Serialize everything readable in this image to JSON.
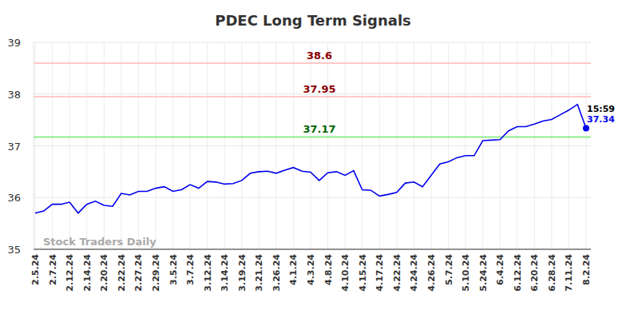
{
  "chart_data": {
    "type": "line",
    "title": "PDEC Long Term Signals",
    "categories": [
      "2.5.24",
      null,
      "2.7.24",
      null,
      "2.12.24",
      null,
      "2.14.24",
      null,
      "2.20.24",
      null,
      "2.22.24",
      null,
      "2.27.24",
      null,
      "2.29.24",
      null,
      "3.5.24",
      null,
      "3.7.24",
      null,
      "3.12.24",
      null,
      "3.14.24",
      null,
      "3.19.24",
      null,
      "3.21.24",
      null,
      "3.26.24",
      null,
      "4.1.24",
      null,
      "4.3.24",
      null,
      "4.8.24",
      null,
      "4.10.24",
      null,
      "4.15.24",
      null,
      "4.17.24",
      null,
      "4.22.24",
      null,
      "4.24.24",
      null,
      "4.26.24",
      null,
      "5.7.24",
      null,
      "5.10.24",
      null,
      "5.24.24",
      null,
      "6.4.24",
      null,
      "6.12.24",
      null,
      "6.20.24",
      null,
      "6.28.24",
      null,
      "7.11.24",
      null,
      "8.2.24"
    ],
    "values": [
      35.7,
      35.74,
      35.87,
      35.87,
      35.91,
      35.7,
      35.87,
      35.93,
      35.85,
      35.83,
      36.08,
      36.05,
      36.12,
      36.12,
      36.18,
      36.21,
      36.12,
      36.15,
      36.25,
      36.18,
      36.31,
      36.3,
      36.26,
      36.27,
      36.33,
      36.47,
      36.5,
      36.51,
      36.47,
      36.53,
      36.58,
      36.51,
      36.49,
      36.33,
      36.48,
      36.5,
      36.43,
      36.52,
      36.15,
      36.14,
      36.03,
      36.06,
      36.1,
      36.28,
      36.3,
      36.21,
      36.43,
      36.65,
      36.69,
      36.77,
      36.81,
      36.81,
      37.1,
      37.11,
      37.12,
      37.29,
      37.37,
      37.37,
      37.42,
      37.48,
      37.51,
      37.6,
      37.69,
      37.8,
      37.34
    ],
    "color": "#0000ee",
    "ylim": [
      35,
      39
    ],
    "yticks": [
      35,
      36,
      37,
      38,
      39
    ],
    "grid": true,
    "reference_lines": [
      {
        "value": 38.6,
        "color": "#ffc8c8",
        "label_color": "#8b0000"
      },
      {
        "value": 37.95,
        "color": "#ffc8c8",
        "label_color": "#8b0000"
      },
      {
        "value": 37.17,
        "color": "#90ee90",
        "label_color": "#006400"
      }
    ],
    "last_time": "15:59",
    "watermark": "Stock Traders Daily"
  }
}
